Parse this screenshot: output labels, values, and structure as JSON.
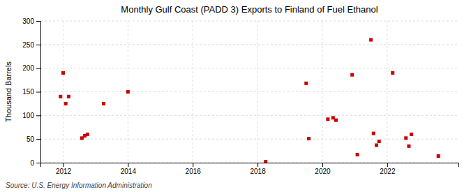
{
  "chart_data": {
    "type": "scatter",
    "title": "Monthly Gulf Coast (PADD 3) Exports to Finland of Fuel Ethanol",
    "y_label": "Thousand Barrels",
    "annotation": "Source: U.S. Energy Information Administration",
    "color": "#cc0000",
    "marker": "square",
    "grid": true,
    "xlim": [
      2011.3,
      2024.2
    ],
    "ylim": [
      0,
      300
    ],
    "xticks": [
      2012,
      2014,
      2016,
      2018,
      2020,
      2022
    ],
    "yticks": [
      0,
      50,
      100,
      150,
      200,
      250,
      300
    ],
    "x": [
      2011.92,
      2012.0,
      2012.08,
      2012.17,
      2012.58,
      2012.67,
      2012.75,
      2013.25,
      2014.0,
      2018.25,
      2019.5,
      2019.58,
      2020.17,
      2020.33,
      2020.42,
      2020.92,
      2021.08,
      2021.5,
      2021.58,
      2021.67,
      2021.75,
      2022.17,
      2022.58,
      2022.67,
      2022.75,
      2023.58
    ],
    "values": [
      140,
      190,
      125,
      140,
      52,
      57,
      60,
      125,
      150,
      2,
      168,
      51,
      92,
      95,
      90,
      186,
      17,
      260,
      62,
      37,
      45,
      190,
      52,
      35,
      60,
      14
    ]
  }
}
